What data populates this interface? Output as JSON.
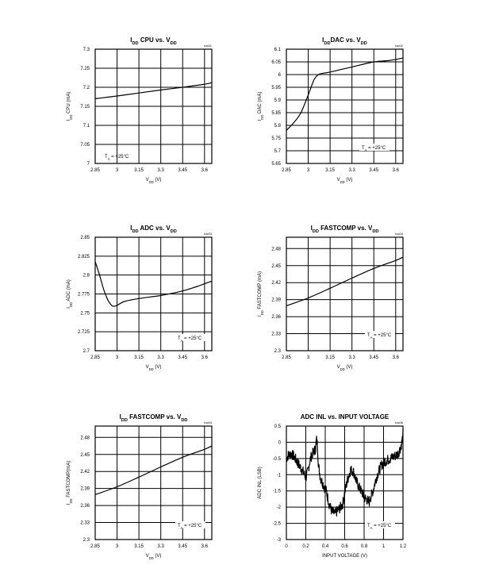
{
  "chart_data": [
    {
      "type": "line",
      "title": "I_DD CPU vs. V_DD",
      "title_main": "I",
      "title_sub": "DD",
      "title_rest": " CPU vs. V",
      "title_sub2": "DD",
      "xlabel": "V_DD (V)",
      "ylabel": "I_DD CPU (mA)",
      "toc": "toc01",
      "annotation": "T_A = +25°C",
      "xlim": [
        2.85,
        3.65
      ],
      "ylim": [
        7.0,
        7.3
      ],
      "xticks": [
        "2.85",
        "3",
        "3.15",
        "3.3",
        "3.45",
        "3.6"
      ],
      "yticks": [
        "7",
        "7.05",
        "7.1",
        "7.15",
        "7.2",
        "7.25",
        "7.3"
      ],
      "x": [
        2.85,
        3.0,
        3.15,
        3.3,
        3.45,
        3.6,
        3.65
      ],
      "y": [
        7.17,
        7.177,
        7.185,
        7.193,
        7.2,
        7.208,
        7.212
      ]
    },
    {
      "type": "line",
      "title": "I_DDDAC vs. V_DD",
      "xlabel": "V_DD (V)",
      "ylabel": "I_DD DAC (mA)",
      "toc": "toc02",
      "annotation": "T_A = +25°C",
      "xlim": [
        2.85,
        3.65
      ],
      "ylim": [
        5.65,
        6.1
      ],
      "xticks": [
        "2.85",
        "3",
        "3.15",
        "3.3",
        "3.45",
        "3.6"
      ],
      "yticks": [
        "5.65",
        "5.7",
        "5.75",
        "5.8",
        "5.85",
        "5.9",
        "5.95",
        "6",
        "6.05",
        "6.1"
      ],
      "x": [
        2.85,
        2.9,
        2.95,
        3.0,
        3.04,
        3.07,
        3.1,
        3.15,
        3.3,
        3.45,
        3.55,
        3.65
      ],
      "y": [
        5.78,
        5.81,
        5.85,
        5.92,
        5.98,
        6.0,
        6.005,
        6.01,
        6.03,
        6.05,
        6.055,
        6.065
      ]
    },
    {
      "type": "line",
      "title": "I_DD ADC vs. V_DD",
      "xlabel": "V_DD (V)",
      "ylabel": "I_DD ADC (mA)",
      "toc": "toc03",
      "annotation": "T_A = +25°C",
      "xlim": [
        2.85,
        3.65
      ],
      "ylim": [
        2.7,
        2.85
      ],
      "xticks": [
        "2.85",
        "3",
        "3.15",
        "3.3",
        "3.45",
        "3.6"
      ],
      "yticks": [
        "2.7",
        "2.725",
        "2.75",
        "2.775",
        "2.8",
        "2.825",
        "2.85"
      ],
      "x": [
        2.85,
        2.88,
        2.91,
        2.94,
        2.97,
        3.0,
        3.05,
        3.15,
        3.3,
        3.45,
        3.55,
        3.65
      ],
      "y": [
        2.818,
        2.8,
        2.78,
        2.766,
        2.759,
        2.76,
        2.765,
        2.769,
        2.773,
        2.779,
        2.785,
        2.792
      ]
    },
    {
      "type": "line",
      "title": "I_DD FASTCOMP vs. V_DD",
      "xlabel": "V_DD (V)",
      "ylabel": "I_DD FASTCOMP (mA)",
      "toc": "toc04",
      "annotation": "T_A = +25°C",
      "xlim": [
        2.85,
        3.65
      ],
      "ylim": [
        2.3,
        2.5
      ],
      "xticks": [
        "2.85",
        "3",
        "3.15",
        "3.3",
        "3.45",
        "3.6"
      ],
      "yticks": [
        "2.3",
        "2.33",
        "2.36",
        "2.39",
        "2.42",
        "2.45",
        "2.48"
      ],
      "x": [
        2.85,
        3.0,
        3.15,
        3.3,
        3.45,
        3.6,
        3.65
      ],
      "y": [
        2.379,
        2.393,
        2.41,
        2.428,
        2.445,
        2.459,
        2.465
      ]
    },
    {
      "type": "line",
      "title": "I_DD FASTCOMP vs. V_DD",
      "xlabel": "V_DD (V)",
      "ylabel": "I_DD FASTCOMP(mA)",
      "toc": "toc04",
      "annotation": "T_A = +25°C",
      "xlim": [
        2.85,
        3.65
      ],
      "ylim": [
        2.3,
        2.5
      ],
      "xticks": [
        "2.85",
        "3",
        "3.15",
        "3.3",
        "3.45",
        "3.6"
      ],
      "yticks": [
        "2.3",
        "2.33",
        "2.36",
        "2.39",
        "2.42",
        "2.45",
        "2.48"
      ],
      "x": [
        2.85,
        3.0,
        3.15,
        3.3,
        3.45,
        3.6,
        3.65
      ],
      "y": [
        2.379,
        2.393,
        2.41,
        2.428,
        2.445,
        2.459,
        2.465
      ]
    },
    {
      "type": "line",
      "title": "ADC INL vs. INPUT VOLTAGE",
      "xlabel": "INPUT VOLTAGE (V)",
      "ylabel": "ADC INL (LSB)",
      "toc": "toc06",
      "annotation": "T_A = +25°C",
      "xlim": [
        0,
        1.2
      ],
      "ylim": [
        -3,
        0.5
      ],
      "xticks": [
        "0",
        "0.2",
        "0.4",
        "0.6",
        "0.8",
        "1",
        "1.2"
      ],
      "yticks": [
        "-3",
        "-2.5",
        "-2",
        "-1.5",
        "-1",
        "-0.5",
        "0",
        "0.5"
      ],
      "noisy": true,
      "x": [
        0,
        0.02,
        0.05,
        0.08,
        0.1,
        0.13,
        0.16,
        0.18,
        0.2,
        0.22,
        0.24,
        0.26,
        0.28,
        0.3,
        0.31,
        0.32,
        0.33,
        0.35,
        0.38,
        0.41,
        0.44,
        0.47,
        0.5,
        0.53,
        0.56,
        0.58,
        0.6,
        0.63,
        0.66,
        0.69,
        0.72,
        0.75,
        0.78,
        0.8,
        0.82,
        0.84,
        0.85,
        0.86,
        0.88,
        0.9,
        0.92,
        0.95,
        0.98,
        1.01,
        1.04,
        1.07,
        1.1,
        1.13,
        1.15,
        1.17,
        1.19,
        1.2
      ],
      "y": [
        -0.5,
        -0.4,
        -0.35,
        -0.45,
        -0.55,
        -0.7,
        -0.85,
        -0.95,
        -1.1,
        -0.9,
        -0.6,
        -0.4,
        -0.3,
        -0.2,
        0.1,
        -0.1,
        -0.7,
        -1.1,
        -1.3,
        -1.5,
        -1.9,
        -2.15,
        -2.2,
        -2.1,
        -2.0,
        -1.9,
        -1.55,
        -1.15,
        -0.85,
        -0.9,
        -1.2,
        -1.4,
        -1.55,
        -1.7,
        -1.75,
        -1.8,
        -1.9,
        -1.75,
        -1.6,
        -1.4,
        -1.15,
        -0.9,
        -0.7,
        -0.6,
        -0.55,
        -0.5,
        -0.45,
        -0.4,
        -0.35,
        -0.2,
        0.0,
        0.25
      ]
    }
  ]
}
